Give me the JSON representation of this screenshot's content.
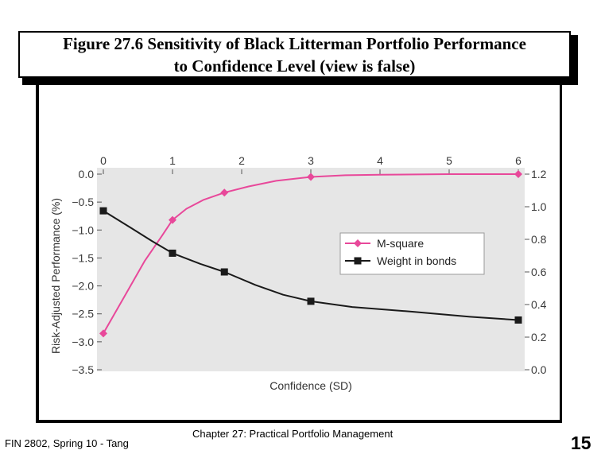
{
  "title": {
    "line1": "Figure 27.6 Sensitivity of Black Litterman Portfolio Performance",
    "line2": "to Confidence Level (view is false)"
  },
  "footer": {
    "left": "FIN 2802, Spring 10 - Tang",
    "center": "Chapter 27: Practical Portfolio Management",
    "page": "15"
  },
  "colors": {
    "m_square": "#e8489a",
    "weight_bonds": "#1a1a1a",
    "plot_bg": "#e6e6e6",
    "frame": "#000000"
  },
  "chart_data": {
    "type": "line",
    "xlabel": "Confidence (SD)",
    "ylabel_left": "Risk-Adjusted Performance (%)",
    "ylabel_right": "",
    "xlim": [
      0,
      6
    ],
    "x_ticks": [
      "0",
      "1",
      "2",
      "3",
      "4",
      "5",
      "6"
    ],
    "y_left_lim": [
      -3.5,
      0.0
    ],
    "y_left_ticks": [
      "0.0",
      "−0.5",
      "−1.0",
      "−1.5",
      "−2.0",
      "−2.5",
      "−3.0",
      "−3.5"
    ],
    "y_right_lim": [
      0.0,
      1.2
    ],
    "y_right_ticks": [
      "1.2",
      "1.0",
      "0.8",
      "0.6",
      "0.4",
      "0.2",
      "0.0"
    ],
    "legend_position": "right-middle",
    "series": [
      {
        "name": "M-square",
        "axis": "left",
        "marker": "diamond",
        "color": "#e8489a",
        "points": [
          [
            0,
            -2.85
          ],
          [
            1,
            -0.82
          ],
          [
            1.75,
            -0.33
          ],
          [
            3,
            -0.05
          ],
          [
            6,
            0.0
          ]
        ],
        "curve": [
          [
            0,
            -2.85
          ],
          [
            0.3,
            -2.2
          ],
          [
            0.6,
            -1.55
          ],
          [
            0.85,
            -1.1
          ],
          [
            1,
            -0.82
          ],
          [
            1.2,
            -0.62
          ],
          [
            1.45,
            -0.46
          ],
          [
            1.75,
            -0.33
          ],
          [
            2.1,
            -0.22
          ],
          [
            2.5,
            -0.12
          ],
          [
            3,
            -0.05
          ],
          [
            3.5,
            -0.02
          ],
          [
            4,
            -0.01
          ],
          [
            5,
            0.0
          ],
          [
            6,
            0.0
          ]
        ]
      },
      {
        "name": "Weight in bonds",
        "axis": "right",
        "marker": "square",
        "color": "#1a1a1a",
        "points": [
          [
            0,
            0.975
          ],
          [
            1,
            0.715
          ],
          [
            1.75,
            0.6
          ],
          [
            3,
            0.42
          ],
          [
            6,
            0.305
          ]
        ],
        "curve": [
          [
            0,
            0.975
          ],
          [
            0.4,
            0.87
          ],
          [
            0.7,
            0.79
          ],
          [
            1,
            0.715
          ],
          [
            1.4,
            0.65
          ],
          [
            1.75,
            0.6
          ],
          [
            2.2,
            0.52
          ],
          [
            2.6,
            0.46
          ],
          [
            3,
            0.42
          ],
          [
            3.6,
            0.385
          ],
          [
            4.5,
            0.355
          ],
          [
            5.3,
            0.325
          ],
          [
            6,
            0.305
          ]
        ]
      }
    ]
  }
}
